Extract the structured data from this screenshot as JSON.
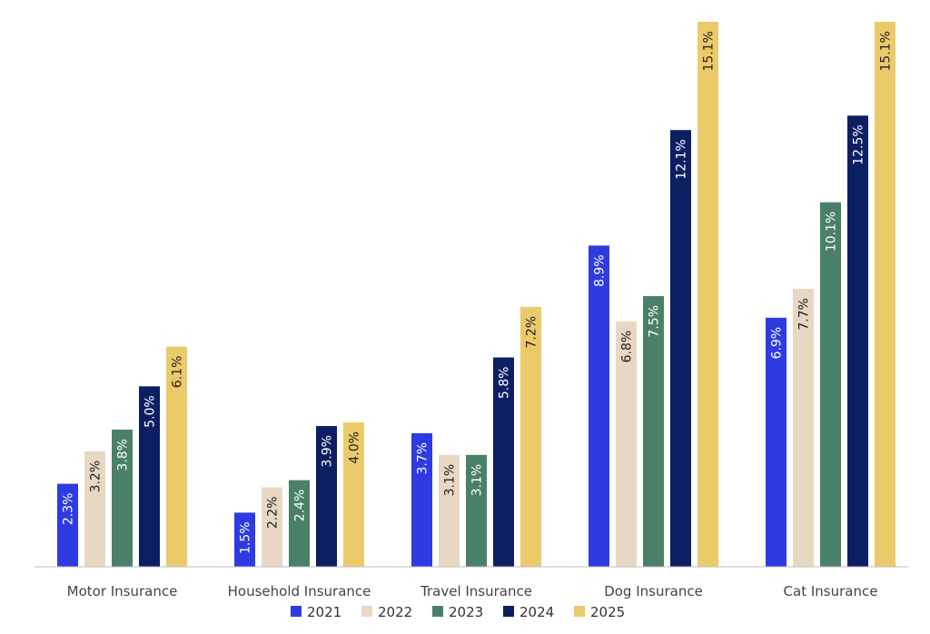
{
  "chart_data": {
    "type": "bar",
    "categories": [
      "Motor Insurance",
      "Household Insurance",
      "Travel Insurance",
      "Dog Insurance",
      "Cat Insurance"
    ],
    "series": [
      {
        "name": "2021",
        "color": "#2e3be0",
        "values": [
          2.3,
          1.5,
          3.7,
          8.9,
          6.9
        ],
        "labels": [
          "2.3%",
          "1.5%",
          "3.7%",
          "8.9%",
          "6.9%"
        ]
      },
      {
        "name": "2022",
        "color": "#e8d8c3",
        "values": [
          3.2,
          2.2,
          3.1,
          6.8,
          7.7
        ],
        "labels": [
          "3.2%",
          "2.2%",
          "3.1%",
          "6.8%",
          "7.7%"
        ]
      },
      {
        "name": "2023",
        "color": "#4a8068",
        "values": [
          3.8,
          2.4,
          3.1,
          7.5,
          10.1
        ],
        "labels": [
          "3.8%",
          "2.4%",
          "3.1%",
          "7.5%",
          "10.1%"
        ]
      },
      {
        "name": "2024",
        "color": "#0d1f63",
        "values": [
          5.0,
          3.9,
          5.8,
          12.1,
          12.5
        ],
        "labels": [
          "5.0%",
          "3.9%",
          "5.8%",
          "12.1%",
          "12.5%"
        ]
      },
      {
        "name": "2025",
        "color": "#ebca6a",
        "values": [
          6.1,
          4.0,
          7.2,
          15.1,
          15.1
        ],
        "labels": [
          "6.1%",
          "4.0%",
          "7.2%",
          "15.1%",
          "15.1%"
        ]
      }
    ],
    "title": "",
    "xlabel": "",
    "ylabel": "",
    "ylim": [
      0,
      15.1
    ],
    "grid": false,
    "legend_position": "bottom"
  }
}
